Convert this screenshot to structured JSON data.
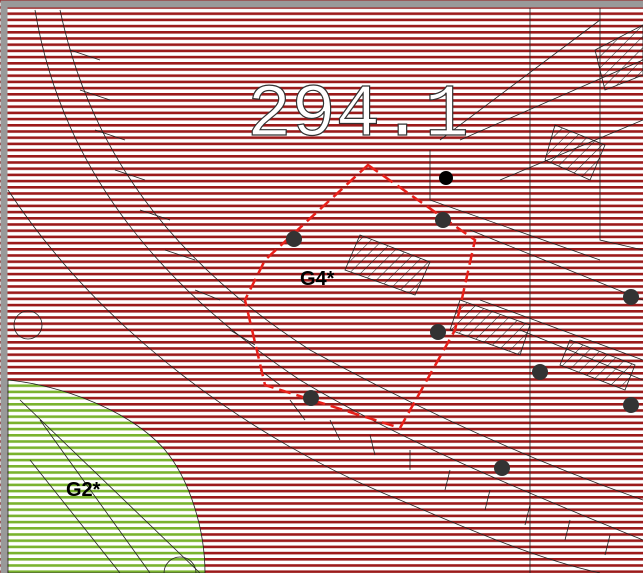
{
  "map": {
    "elevation_label": "294.1",
    "zones": [
      {
        "label": "G4*"
      },
      {
        "label": "G2*"
      }
    ]
  }
}
